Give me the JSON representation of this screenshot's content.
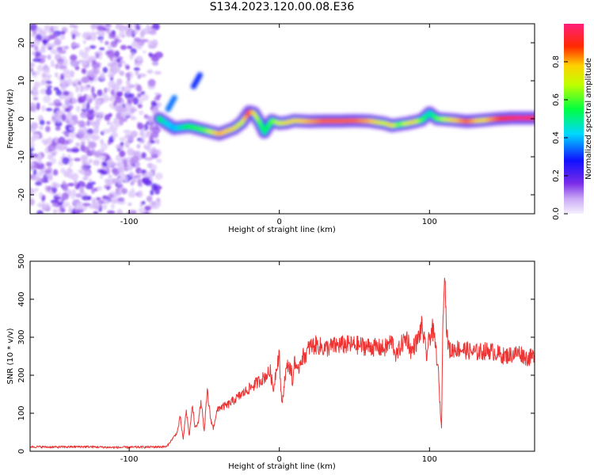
{
  "title": "S134.2023.120.00.08.E36",
  "chart_data": [
    {
      "type": "heatmap",
      "xlabel": "Height of straight line (km)",
      "ylabel": "Frequency (Hz)",
      "xlim": [
        -166,
        170
      ],
      "ylim": [
        -25,
        25
      ],
      "xticks": [
        -100,
        0,
        100
      ],
      "yticks": [
        -20,
        -10,
        0,
        10,
        20
      ],
      "colorbar": {
        "label": "Normalized spectral amplitude",
        "range": [
          0,
          1
        ],
        "ticks": [
          "0.0",
          "0.2",
          "0.4",
          "0.6",
          "0.8"
        ]
      },
      "noise_region_x": [
        -166,
        -80
      ],
      "ridge": [
        {
          "x": -80,
          "y": 0.0,
          "a": 0.55
        },
        {
          "x": -76,
          "y": -1.0,
          "a": 0.45
        },
        {
          "x": -70,
          "y": -2.5,
          "a": 0.4
        },
        {
          "x": -60,
          "y": -2.0,
          "a": 0.55
        },
        {
          "x": -50,
          "y": -3.0,
          "a": 0.6
        },
        {
          "x": -40,
          "y": -4.0,
          "a": 0.8
        },
        {
          "x": -30,
          "y": -2.5,
          "a": 0.75
        },
        {
          "x": -25,
          "y": -1.0,
          "a": 0.7
        },
        {
          "x": -20,
          "y": 1.8,
          "a": 0.9
        },
        {
          "x": -17,
          "y": 1.5,
          "a": 0.75
        },
        {
          "x": -13,
          "y": -1.0,
          "a": 0.6
        },
        {
          "x": -10,
          "y": -3.5,
          "a": 0.5
        },
        {
          "x": -5,
          "y": -0.5,
          "a": 0.6
        },
        {
          "x": 0,
          "y": -1.2,
          "a": 0.7
        },
        {
          "x": 5,
          "y": -1.0,
          "a": 0.75
        },
        {
          "x": 10,
          "y": -0.5,
          "a": 0.75
        },
        {
          "x": 20,
          "y": -0.7,
          "a": 0.8
        },
        {
          "x": 30,
          "y": -0.6,
          "a": 0.85
        },
        {
          "x": 40,
          "y": -0.6,
          "a": 0.85
        },
        {
          "x": 50,
          "y": -0.5,
          "a": 0.85
        },
        {
          "x": 60,
          "y": -0.6,
          "a": 0.8
        },
        {
          "x": 70,
          "y": -1.2,
          "a": 0.7
        },
        {
          "x": 75,
          "y": -1.8,
          "a": 0.75
        },
        {
          "x": 80,
          "y": -1.5,
          "a": 0.6
        },
        {
          "x": 85,
          "y": -1.2,
          "a": 0.7
        },
        {
          "x": 90,
          "y": -0.8,
          "a": 0.75
        },
        {
          "x": 95,
          "y": -0.3,
          "a": 0.6
        },
        {
          "x": 100,
          "y": 1.5,
          "a": 0.45
        },
        {
          "x": 105,
          "y": 0.0,
          "a": 0.6
        },
        {
          "x": 115,
          "y": -0.3,
          "a": 0.75
        },
        {
          "x": 125,
          "y": -0.7,
          "a": 0.85
        },
        {
          "x": 135,
          "y": -0.4,
          "a": 0.75
        },
        {
          "x": 145,
          "y": 0.0,
          "a": 0.85
        },
        {
          "x": 155,
          "y": 0.2,
          "a": 0.95
        },
        {
          "x": 162,
          "y": 0.2,
          "a": 1.0
        },
        {
          "x": 170,
          "y": 0.2,
          "a": 0.95
        }
      ],
      "side_streaks": [
        {
          "x": -55,
          "y": 10.0,
          "a": 0.3
        },
        {
          "x": -72,
          "y": 4.0,
          "a": 0.35
        }
      ]
    },
    {
      "type": "line",
      "xlabel": "Height of straight line (km)",
      "ylabel": "SNR (10 * v/v)",
      "xlim": [
        -166,
        170
      ],
      "ylim": [
        0,
        500
      ],
      "xticks": [
        -100,
        0,
        100
      ],
      "yticks": [
        0,
        100,
        200,
        300,
        400,
        500
      ],
      "color": "#ee3333",
      "series": [
        {
          "x": [
            -166,
            -150,
            -130,
            -110,
            -90,
            -75,
            -68,
            -66,
            -64,
            -62,
            -60,
            -58,
            -56,
            -54,
            -52,
            -50,
            -48,
            -46,
            -44,
            -42,
            -40,
            -35,
            -30,
            -25,
            -20,
            -15,
            -10,
            -6,
            -4,
            -2,
            0,
            1,
            2,
            4,
            6,
            8,
            9,
            10,
            12,
            14,
            16,
            18,
            20,
            25,
            30,
            40,
            50,
            60,
            70,
            75,
            78,
            80,
            82,
            85,
            88,
            90,
            92,
            95,
            98,
            100,
            102,
            104,
            106,
            107,
            108,
            109,
            110,
            111,
            112,
            114,
            116,
            120,
            130,
            140,
            150,
            160,
            165,
            170
          ],
          "y": [
            12,
            11,
            12,
            10,
            11,
            12,
            50,
            90,
            30,
            110,
            40,
            120,
            60,
            80,
            130,
            50,
            160,
            90,
            60,
            100,
            115,
            120,
            135,
            150,
            165,
            180,
            195,
            210,
            160,
            220,
            260,
            150,
            130,
            205,
            230,
            210,
            170,
            250,
            200,
            240,
            250,
            255,
            275,
            280,
            270,
            280,
            280,
            275,
            270,
            290,
            250,
            270,
            285,
            300,
            260,
            280,
            290,
            330,
            250,
            300,
            320,
            280,
            200,
            120,
            60,
            360,
            500,
            360,
            290,
            260,
            270,
            270,
            260,
            265,
            250,
            260,
            245,
            250
          ]
        }
      ]
    }
  ]
}
